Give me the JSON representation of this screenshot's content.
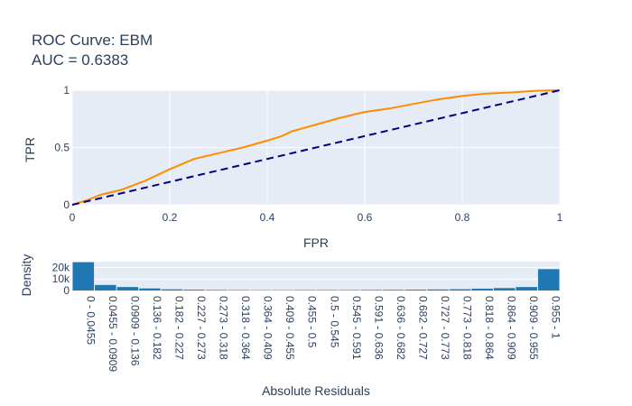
{
  "chart_data": [
    {
      "type": "line",
      "title": "ROC Curve: EBM",
      "subtitle": "AUC = 0.6383",
      "xlabel": "FPR",
      "ylabel": "TPR",
      "xlim": [
        0,
        1
      ],
      "ylim": [
        0,
        1
      ],
      "xticks": [
        "0",
        "0.2",
        "0.4",
        "0.6",
        "0.8",
        "1"
      ],
      "yticks": [
        "0",
        "0.5",
        "1"
      ],
      "grid": true,
      "series": [
        {
          "style": "solid",
          "color": "#ff8c00",
          "x": [
            0,
            0.03,
            0.06,
            0.1,
            0.15,
            0.2,
            0.25,
            0.3,
            0.35,
            0.4,
            0.43,
            0.45,
            0.5,
            0.55,
            0.6,
            0.65,
            0.7,
            0.75,
            0.8,
            0.85,
            0.9,
            0.95,
            1.0
          ],
          "y": [
            0,
            0.04,
            0.09,
            0.13,
            0.21,
            0.31,
            0.4,
            0.45,
            0.5,
            0.56,
            0.6,
            0.64,
            0.7,
            0.76,
            0.81,
            0.84,
            0.88,
            0.92,
            0.95,
            0.97,
            0.98,
            0.995,
            1.0
          ]
        },
        {
          "style": "dash",
          "color": "#000080",
          "x": [
            0,
            1
          ],
          "y": [
            0,
            1
          ]
        }
      ]
    },
    {
      "type": "bar",
      "xlabel": "Absolute Residuals",
      "ylabel": "Density",
      "yticks": [
        "0",
        "10k",
        "20k"
      ],
      "ylim": [
        0,
        25000
      ],
      "color": "#1f77b4",
      "categories": [
        "0 - 0.0455",
        "0.0455 - 0.0909",
        "0.0909 - 0.136",
        "0.136 - 0.182",
        "0.182 - 0.227",
        "0.227 - 0.273",
        "0.273 - 0.318",
        "0.318 - 0.364",
        "0.364 - 0.409",
        "0.409 - 0.455",
        "0.455 - 0.5",
        "0.5 - 0.545",
        "0.545 - 0.591",
        "0.591 - 0.636",
        "0.636 - 0.682",
        "0.682 - 0.727",
        "0.727 - 0.773",
        "0.773 - 0.818",
        "0.818 - 0.864",
        "0.864 - 0.909",
        "0.909 - 0.955",
        "0.955 - 1"
      ],
      "values": [
        24500,
        4800,
        3000,
        1800,
        1000,
        700,
        500,
        400,
        300,
        300,
        400,
        400,
        400,
        500,
        600,
        700,
        900,
        1100,
        1600,
        2100,
        3000,
        18500
      ]
    }
  ]
}
